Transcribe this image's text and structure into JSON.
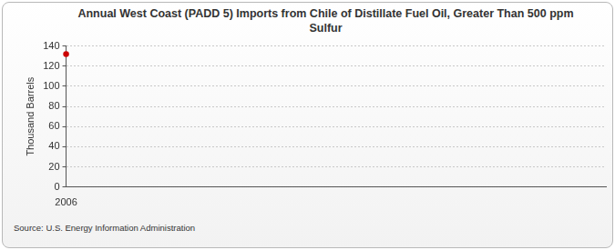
{
  "chart_data": {
    "type": "line",
    "title": "Annual West Coast (PADD 5) Imports from Chile of Distillate Fuel Oil, Greater Than 500 ppm Sulfur",
    "y_label": "Thousand Barrels",
    "source": "Source: U.S. Energy Information Administration",
    "x": [
      2006
    ],
    "values": [
      132
    ],
    "color": "#cc0000",
    "marker": "circle",
    "xlim": [
      2006,
      2030
    ],
    "xticks": [
      2006
    ],
    "ylim": [
      0,
      140
    ],
    "yticks": [
      0,
      20,
      40,
      60,
      80,
      100,
      120,
      140
    ],
    "grid": true
  }
}
